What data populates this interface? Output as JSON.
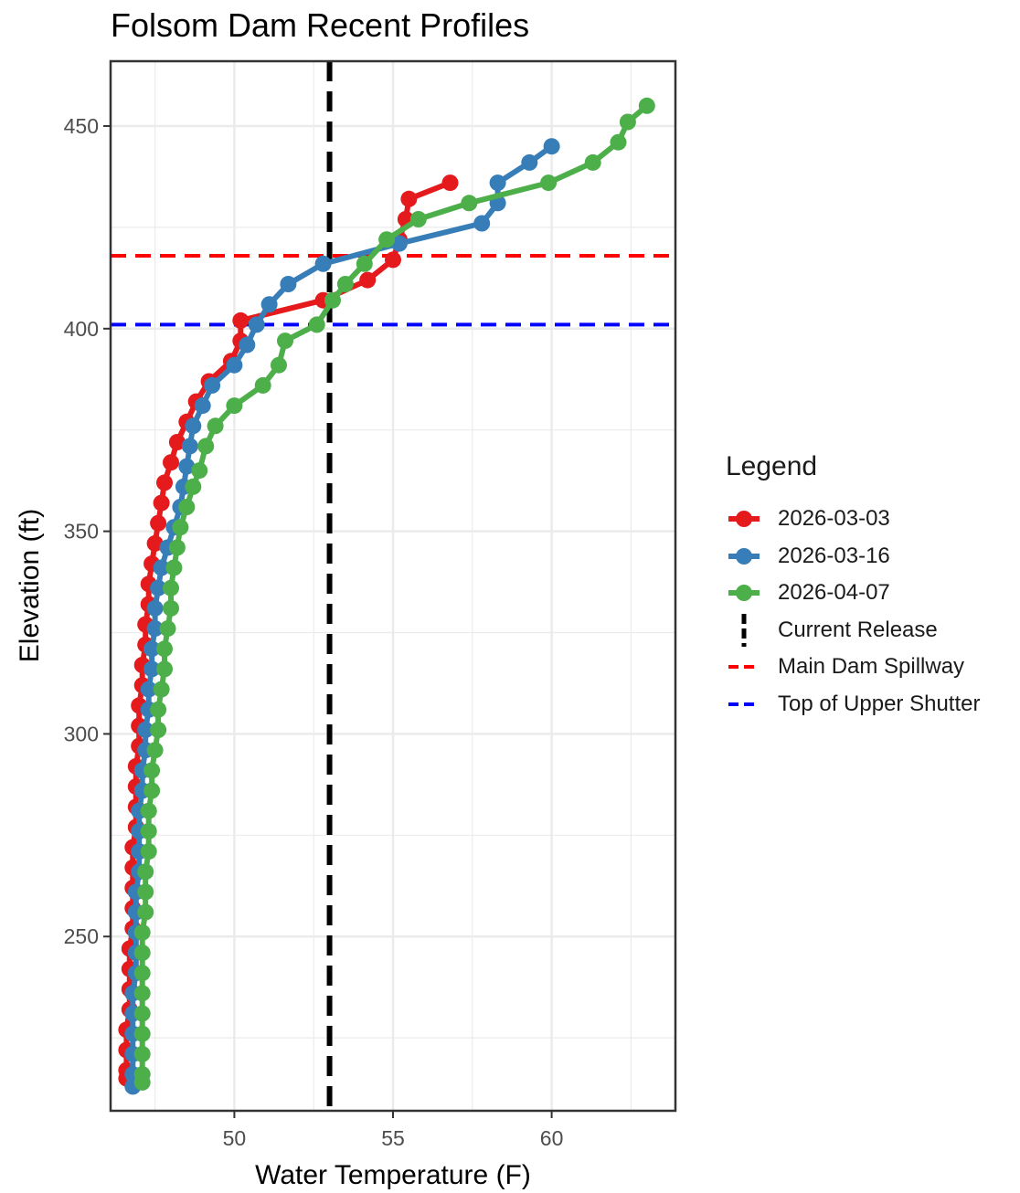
{
  "chart_data": {
    "type": "line",
    "title": "Folsom Dam Recent Profiles",
    "xlabel": "Water Temperature (F)",
    "ylabel": "Elevation (ft)",
    "xlim": [
      46.1,
      63.9
    ],
    "ylim": [
      207,
      466
    ],
    "xticks": [
      50,
      55,
      60
    ],
    "yticks": [
      250,
      300,
      350,
      400,
      450
    ],
    "grid": true,
    "legend_position": "right",
    "legend_title": "Legend",
    "series": [
      {
        "name": "2026-03-03",
        "color": "#E41A1C",
        "points": [
          [
            56.8,
            436
          ],
          [
            55.5,
            432
          ],
          [
            55.4,
            427
          ],
          [
            55.2,
            422
          ],
          [
            55.0,
            417
          ],
          [
            54.2,
            412
          ],
          [
            52.8,
            407
          ],
          [
            50.2,
            402
          ],
          [
            50.2,
            397
          ],
          [
            49.9,
            392
          ],
          [
            49.2,
            387
          ],
          [
            48.8,
            382
          ],
          [
            48.5,
            377
          ],
          [
            48.2,
            372
          ],
          [
            48.0,
            367
          ],
          [
            47.8,
            362
          ],
          [
            47.7,
            357
          ],
          [
            47.6,
            352
          ],
          [
            47.5,
            347
          ],
          [
            47.4,
            342
          ],
          [
            47.3,
            337
          ],
          [
            47.3,
            332
          ],
          [
            47.2,
            327
          ],
          [
            47.2,
            322
          ],
          [
            47.1,
            317
          ],
          [
            47.1,
            312
          ],
          [
            47.0,
            307
          ],
          [
            47.0,
            302
          ],
          [
            47.0,
            297
          ],
          [
            46.9,
            292
          ],
          [
            46.9,
            287
          ],
          [
            46.9,
            282
          ],
          [
            46.9,
            277
          ],
          [
            46.8,
            272
          ],
          [
            46.8,
            267
          ],
          [
            46.8,
            262
          ],
          [
            46.8,
            257
          ],
          [
            46.8,
            252
          ],
          [
            46.7,
            247
          ],
          [
            46.7,
            242
          ],
          [
            46.7,
            237
          ],
          [
            46.7,
            232
          ],
          [
            46.6,
            227
          ],
          [
            46.6,
            222
          ],
          [
            46.6,
            217
          ],
          [
            46.6,
            215
          ]
        ]
      },
      {
        "name": "2026-03-16",
        "color": "#377EB8",
        "points": [
          [
            60.0,
            445
          ],
          [
            59.3,
            441
          ],
          [
            58.3,
            436
          ],
          [
            58.3,
            431
          ],
          [
            57.8,
            426
          ],
          [
            55.2,
            421
          ],
          [
            52.8,
            416
          ],
          [
            51.7,
            411
          ],
          [
            51.1,
            406
          ],
          [
            50.7,
            401
          ],
          [
            50.4,
            396
          ],
          [
            50.0,
            391
          ],
          [
            49.3,
            386
          ],
          [
            49.0,
            381
          ],
          [
            48.7,
            376
          ],
          [
            48.6,
            371
          ],
          [
            48.5,
            366
          ],
          [
            48.4,
            361
          ],
          [
            48.3,
            356
          ],
          [
            48.1,
            351
          ],
          [
            47.9,
            346
          ],
          [
            47.7,
            341
          ],
          [
            47.6,
            336
          ],
          [
            47.5,
            331
          ],
          [
            47.5,
            326
          ],
          [
            47.4,
            321
          ],
          [
            47.4,
            316
          ],
          [
            47.3,
            311
          ],
          [
            47.3,
            306
          ],
          [
            47.2,
            301
          ],
          [
            47.2,
            296
          ],
          [
            47.1,
            291
          ],
          [
            47.1,
            286
          ],
          [
            47.0,
            281
          ],
          [
            47.0,
            276
          ],
          [
            47.0,
            271
          ],
          [
            47.0,
            266
          ],
          [
            46.9,
            261
          ],
          [
            46.9,
            256
          ],
          [
            46.9,
            251
          ],
          [
            46.9,
            246
          ],
          [
            46.9,
            241
          ],
          [
            46.8,
            236
          ],
          [
            46.8,
            231
          ],
          [
            46.8,
            226
          ],
          [
            46.8,
            221
          ],
          [
            46.8,
            216
          ],
          [
            46.8,
            213
          ]
        ]
      },
      {
        "name": "2026-04-07",
        "color": "#4DAF4A",
        "points": [
          [
            63.0,
            455
          ],
          [
            62.4,
            451
          ],
          [
            62.1,
            446
          ],
          [
            61.3,
            441
          ],
          [
            59.9,
            436
          ],
          [
            57.4,
            431
          ],
          [
            55.8,
            427
          ],
          [
            54.8,
            422
          ],
          [
            54.1,
            416
          ],
          [
            53.5,
            411
          ],
          [
            53.1,
            407
          ],
          [
            52.6,
            401
          ],
          [
            51.6,
            397
          ],
          [
            51.4,
            391
          ],
          [
            50.9,
            386
          ],
          [
            50.0,
            381
          ],
          [
            49.4,
            376
          ],
          [
            49.1,
            371
          ],
          [
            48.9,
            365
          ],
          [
            48.7,
            361
          ],
          [
            48.5,
            356
          ],
          [
            48.3,
            351
          ],
          [
            48.2,
            346
          ],
          [
            48.1,
            341
          ],
          [
            48.0,
            336
          ],
          [
            48.0,
            331
          ],
          [
            47.9,
            326
          ],
          [
            47.8,
            321
          ],
          [
            47.8,
            316
          ],
          [
            47.7,
            311
          ],
          [
            47.6,
            306
          ],
          [
            47.6,
            301
          ],
          [
            47.5,
            296
          ],
          [
            47.4,
            291
          ],
          [
            47.4,
            286
          ],
          [
            47.3,
            281
          ],
          [
            47.3,
            276
          ],
          [
            47.3,
            271
          ],
          [
            47.2,
            266
          ],
          [
            47.2,
            261
          ],
          [
            47.2,
            256
          ],
          [
            47.1,
            251
          ],
          [
            47.1,
            246
          ],
          [
            47.1,
            241
          ],
          [
            47.1,
            236
          ],
          [
            47.1,
            231
          ],
          [
            47.1,
            226
          ],
          [
            47.1,
            221
          ],
          [
            47.1,
            216
          ],
          [
            47.1,
            214
          ]
        ]
      }
    ],
    "reference_lines": [
      {
        "name": "Current Release",
        "orientation": "vertical",
        "value": 53.0,
        "color": "#000000",
        "style": "dashed"
      },
      {
        "name": "Main Dam Spillway",
        "orientation": "horizontal",
        "value": 418,
        "color": "#FF0000",
        "style": "dashed"
      },
      {
        "name": "Top of Upper Shutter",
        "orientation": "horizontal",
        "value": 401,
        "color": "#0000FF",
        "style": "dashed"
      }
    ]
  }
}
